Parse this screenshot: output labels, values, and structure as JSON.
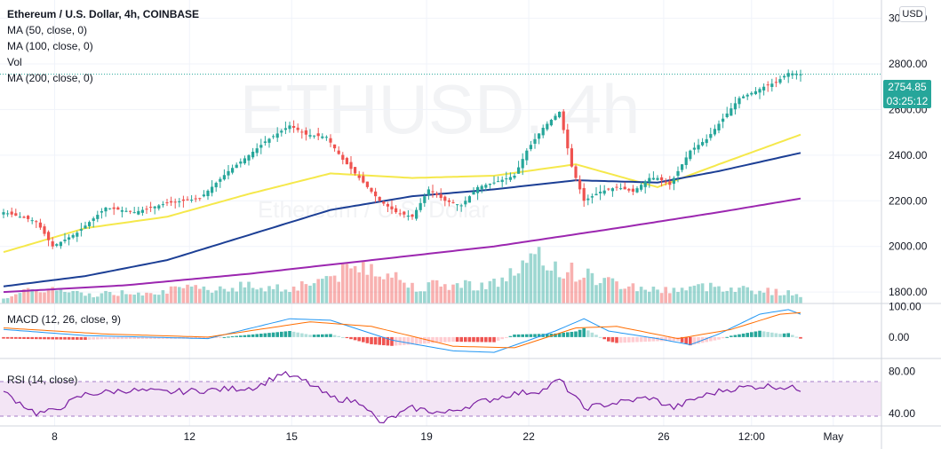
{
  "header": {
    "title": "Ethereum / U.S. Dollar, 4h, COINBASE",
    "indicators": [
      "MA (50, close, 0)",
      "MA (100, close, 0)",
      "Vol",
      "MA (200, close, 0)"
    ],
    "currency_button": "USD",
    "watermark": "ETHUSD, 4h",
    "watermark_sub": "Ethereum / U.S. Dollar"
  },
  "price_tag": {
    "price": "2754.85",
    "countdown": "03:25:12"
  },
  "macd": {
    "label": "MACD (12, 26, close, 9)"
  },
  "rsi": {
    "label": "RSI (14, close)"
  },
  "colors": {
    "up": "#26a69a",
    "down": "#ef5350",
    "ma50": "#f5e84b",
    "ma100": "#1c3f95",
    "ma200": "#9c27b0",
    "macd": "#2196f3",
    "signal": "#ff6d00",
    "rsi": "#7b1fa2"
  },
  "chart_data": [
    {
      "type": "candlestick",
      "title": "Ethereum / U.S. Dollar, 4h, COINBASE",
      "ylim": [
        1750,
        3080
      ],
      "y_ticks": [
        3000,
        2800,
        2600,
        2400,
        2200,
        2000,
        1800
      ],
      "y_tick_labels": [
        "3000.00",
        "2800.00",
        "2600.00",
        "2400.00",
        "2200.00",
        "2000.00",
        "1800.00"
      ],
      "x_tick_labels": [
        "8",
        "12",
        "15",
        "19",
        "22",
        "26",
        "12:00",
        "May"
      ],
      "last_price": 2754.85,
      "close_anchors": [
        [
          0,
          2150
        ],
        [
          8,
          2110
        ],
        [
          12,
          2000
        ],
        [
          18,
          2060
        ],
        [
          25,
          2170
        ],
        [
          32,
          2150
        ],
        [
          40,
          2190
        ],
        [
          48,
          2210
        ],
        [
          55,
          2330
        ],
        [
          60,
          2400
        ],
        [
          64,
          2460
        ],
        [
          70,
          2530
        ],
        [
          74,
          2490
        ],
        [
          79,
          2480
        ],
        [
          83,
          2380
        ],
        [
          87,
          2300
        ],
        [
          92,
          2200
        ],
        [
          96,
          2150
        ],
        [
          100,
          2130
        ],
        [
          104,
          2250
        ],
        [
          108,
          2200
        ],
        [
          112,
          2180
        ],
        [
          116,
          2260
        ],
        [
          120,
          2280
        ],
        [
          125,
          2310
        ],
        [
          128,
          2420
        ],
        [
          132,
          2520
        ],
        [
          136,
          2590
        ],
        [
          139,
          2350
        ],
        [
          142,
          2200
        ],
        [
          146,
          2240
        ],
        [
          150,
          2260
        ],
        [
          154,
          2240
        ],
        [
          158,
          2300
        ],
        [
          160,
          2300
        ],
        [
          163,
          2270
        ],
        [
          168,
          2420
        ],
        [
          172,
          2470
        ],
        [
          176,
          2560
        ],
        [
          180,
          2650
        ],
        [
          184,
          2680
        ],
        [
          186,
          2700
        ],
        [
          189,
          2720
        ],
        [
          192,
          2760
        ],
        [
          195,
          2755
        ]
      ],
      "series": [
        {
          "name": "MA (50, close, 0)",
          "values_anchors": [
            [
              0,
              1975
            ],
            [
              20,
              2080
            ],
            [
              40,
              2130
            ],
            [
              60,
              2230
            ],
            [
              80,
              2320
            ],
            [
              100,
              2300
            ],
            [
              120,
              2310
            ],
            [
              140,
              2360
            ],
            [
              160,
              2260
            ],
            [
              175,
              2360
            ],
            [
              195,
              2490
            ]
          ]
        },
        {
          "name": "MA (100, close, 0)",
          "values_anchors": [
            [
              0,
              1825
            ],
            [
              20,
              1870
            ],
            [
              40,
              1940
            ],
            [
              60,
              2050
            ],
            [
              80,
              2160
            ],
            [
              100,
              2220
            ],
            [
              120,
              2250
            ],
            [
              140,
              2290
            ],
            [
              160,
              2280
            ],
            [
              175,
              2330
            ],
            [
              195,
              2410
            ]
          ]
        },
        {
          "name": "MA (200, close, 0)",
          "values_anchors": [
            [
              0,
              1800
            ],
            [
              30,
              1830
            ],
            [
              60,
              1880
            ],
            [
              90,
              1940
            ],
            [
              120,
              2000
            ],
            [
              150,
              2080
            ],
            [
              175,
              2150
            ],
            [
              195,
              2210
            ]
          ]
        }
      ],
      "volume_anchors": [
        [
          0,
          0.15
        ],
        [
          10,
          0.35
        ],
        [
          20,
          0.2
        ],
        [
          40,
          0.3
        ],
        [
          60,
          0.4
        ],
        [
          70,
          0.35
        ],
        [
          90,
          0.9
        ],
        [
          100,
          0.4
        ],
        [
          120,
          0.45
        ],
        [
          130,
          1.0
        ],
        [
          140,
          0.7
        ],
        [
          150,
          0.45
        ],
        [
          160,
          0.3
        ],
        [
          175,
          0.4
        ],
        [
          195,
          0.2
        ]
      ]
    },
    {
      "type": "bar-line",
      "title": "MACD (12, 26, close, 9)",
      "ylim": [
        -70,
        110
      ],
      "y_ticks": [
        100,
        0
      ],
      "y_tick_labels": [
        "100.00",
        "0.00"
      ],
      "macd_anchors": [
        [
          0,
          25
        ],
        [
          20,
          5
        ],
        [
          50,
          -5
        ],
        [
          70,
          60
        ],
        [
          80,
          55
        ],
        [
          95,
          -10
        ],
        [
          110,
          -45
        ],
        [
          120,
          -50
        ],
        [
          135,
          20
        ],
        [
          142,
          60
        ],
        [
          148,
          20
        ],
        [
          160,
          -5
        ],
        [
          168,
          -25
        ],
        [
          175,
          10
        ],
        [
          185,
          75
        ],
        [
          192,
          90
        ],
        [
          195,
          75
        ]
      ],
      "signal_anchors": [
        [
          0,
          30
        ],
        [
          25,
          10
        ],
        [
          50,
          0
        ],
        [
          75,
          50
        ],
        [
          90,
          35
        ],
        [
          110,
          -30
        ],
        [
          125,
          -35
        ],
        [
          140,
          30
        ],
        [
          150,
          35
        ],
        [
          165,
          -5
        ],
        [
          178,
          25
        ],
        [
          190,
          75
        ],
        [
          195,
          80
        ]
      ]
    },
    {
      "type": "line",
      "title": "RSI (14, close)",
      "ylim": [
        28,
        92
      ],
      "y_ticks": [
        80,
        40
      ],
      "y_tick_labels": [
        "80.00",
        "40.00"
      ],
      "band": [
        30,
        70
      ],
      "values_anchors": [
        [
          0,
          60
        ],
        [
          8,
          40
        ],
        [
          12,
          42
        ],
        [
          20,
          58
        ],
        [
          30,
          62
        ],
        [
          40,
          60
        ],
        [
          55,
          63
        ],
        [
          62,
          65
        ],
        [
          68,
          78
        ],
        [
          74,
          70
        ],
        [
          80,
          55
        ],
        [
          88,
          50
        ],
        [
          92,
          30
        ],
        [
          100,
          45
        ],
        [
          108,
          40
        ],
        [
          116,
          50
        ],
        [
          124,
          58
        ],
        [
          132,
          62
        ],
        [
          136,
          72
        ],
        [
          142,
          45
        ],
        [
          150,
          50
        ],
        [
          158,
          55
        ],
        [
          164,
          45
        ],
        [
          170,
          55
        ],
        [
          176,
          62
        ],
        [
          182,
          65
        ],
        [
          188,
          66
        ],
        [
          195,
          63
        ]
      ]
    }
  ]
}
